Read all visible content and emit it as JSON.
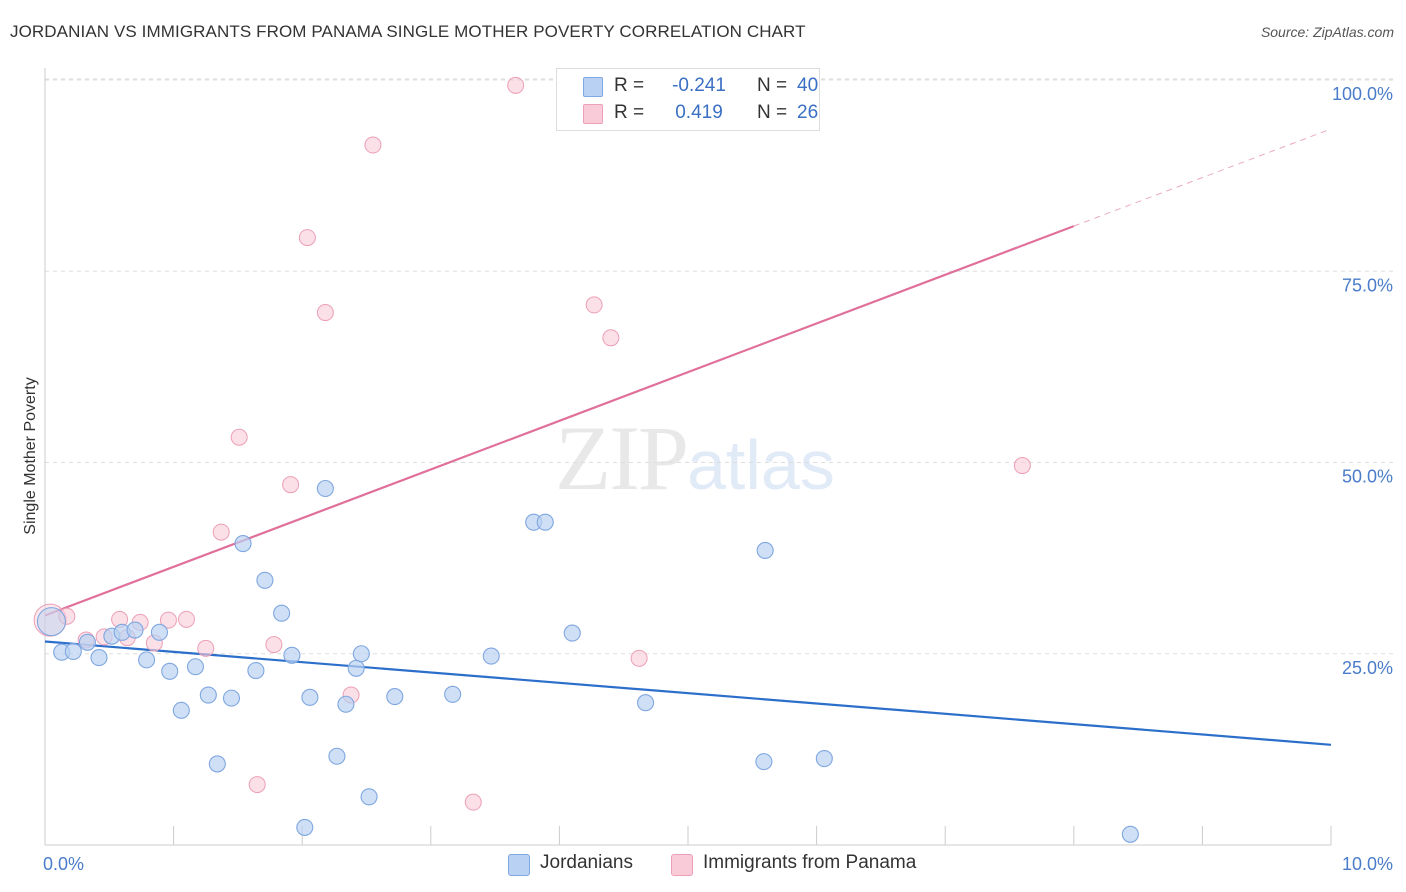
{
  "title": "JORDANIAN VS IMMIGRANTS FROM PANAMA SINGLE MOTHER POVERTY CORRELATION CHART",
  "source": "Source: ZipAtlas.com",
  "watermark": {
    "zip": "ZIP",
    "atlas": "atlas"
  },
  "legend": {
    "jordanians": {
      "r_label": "R =",
      "r_value": "-0.241",
      "n_label": "N =",
      "n_value": "40"
    },
    "panama": {
      "r_label": "R =",
      "r_value": "0.419",
      "n_label": "N =",
      "n_value": "26"
    }
  },
  "bottom_legend": {
    "jordanians": "Jordanians",
    "panama": "Immigrants from Panama"
  },
  "colors": {
    "blue_fill": "#b9d1f2",
    "blue_stroke": "#7fa7e0",
    "blue_line": "#2b6fcb",
    "pink_fill": "#f9cbd8",
    "pink_stroke": "#ec9fb6",
    "pink_line": "#e0709a",
    "grid": "#dddddd",
    "tick_text": "#4a7cc9"
  },
  "chart_data": {
    "type": "scatter",
    "title": "JORDANIAN VS IMMIGRANTS FROM PANAMA SINGLE MOTHER POVERTY CORRELATION CHART",
    "xlabel": "",
    "ylabel": "Single Mother Poverty",
    "xlim": [
      0,
      10
    ],
    "ylim": [
      0,
      102
    ],
    "x_ticks": [
      {
        "value": 0,
        "label": "0.0%"
      },
      {
        "value": 10,
        "label": "10.0%"
      }
    ],
    "y_ticks": [
      {
        "value": 25,
        "label": "25.0%"
      },
      {
        "value": 50,
        "label": "50.0%"
      },
      {
        "value": 75,
        "label": "75.0%"
      },
      {
        "value": 100,
        "label": "100.0%"
      }
    ],
    "series": [
      {
        "name": "Jordanians",
        "points": [
          {
            "x": 0.05,
            "y": 29.2,
            "big": true
          },
          {
            "x": 0.13,
            "y": 25.2
          },
          {
            "x": 0.22,
            "y": 25.3
          },
          {
            "x": 0.33,
            "y": 26.5
          },
          {
            "x": 0.42,
            "y": 24.5
          },
          {
            "x": 0.52,
            "y": 27.3
          },
          {
            "x": 0.6,
            "y": 27.8
          },
          {
            "x": 0.7,
            "y": 28.1
          },
          {
            "x": 0.79,
            "y": 24.2
          },
          {
            "x": 0.89,
            "y": 27.8
          },
          {
            "x": 0.97,
            "y": 22.7
          },
          {
            "x": 1.06,
            "y": 17.6
          },
          {
            "x": 1.17,
            "y": 23.3
          },
          {
            "x": 1.27,
            "y": 19.6
          },
          {
            "x": 1.34,
            "y": 10.6
          },
          {
            "x": 1.45,
            "y": 19.2
          },
          {
            "x": 1.54,
            "y": 39.4
          },
          {
            "x": 1.64,
            "y": 22.8
          },
          {
            "x": 1.71,
            "y": 34.6
          },
          {
            "x": 1.84,
            "y": 30.3
          },
          {
            "x": 1.92,
            "y": 24.8
          },
          {
            "x": 2.02,
            "y": 2.3
          },
          {
            "x": 2.06,
            "y": 19.3
          },
          {
            "x": 2.18,
            "y": 46.6
          },
          {
            "x": 2.27,
            "y": 11.6
          },
          {
            "x": 2.34,
            "y": 18.4
          },
          {
            "x": 2.42,
            "y": 23.1
          },
          {
            "x": 2.46,
            "y": 25.0
          },
          {
            "x": 2.52,
            "y": 6.3
          },
          {
            "x": 2.72,
            "y": 19.4
          },
          {
            "x": 3.17,
            "y": 19.7
          },
          {
            "x": 3.47,
            "y": 24.7
          },
          {
            "x": 3.8,
            "y": 42.2
          },
          {
            "x": 3.89,
            "y": 42.2
          },
          {
            "x": 4.1,
            "y": 27.7
          },
          {
            "x": 4.67,
            "y": 18.6
          },
          {
            "x": 5.6,
            "y": 38.5
          },
          {
            "x": 5.59,
            "y": 10.9
          },
          {
            "x": 6.06,
            "y": 11.3
          },
          {
            "x": 8.44,
            "y": 1.4
          }
        ]
      },
      {
        "name": "Immigrants from Panama",
        "points": [
          {
            "x": 0.04,
            "y": 29.4,
            "big": true
          },
          {
            "x": 0.17,
            "y": 29.9
          },
          {
            "x": 0.32,
            "y": 26.8
          },
          {
            "x": 0.46,
            "y": 27.2
          },
          {
            "x": 0.58,
            "y": 29.5
          },
          {
            "x": 0.64,
            "y": 27.1
          },
          {
            "x": 0.74,
            "y": 29.1
          },
          {
            "x": 0.85,
            "y": 26.4
          },
          {
            "x": 0.96,
            "y": 29.4
          },
          {
            "x": 1.1,
            "y": 29.5
          },
          {
            "x": 1.25,
            "y": 25.7
          },
          {
            "x": 1.37,
            "y": 40.9
          },
          {
            "x": 1.51,
            "y": 53.3
          },
          {
            "x": 1.65,
            "y": 7.9
          },
          {
            "x": 1.78,
            "y": 26.2
          },
          {
            "x": 1.91,
            "y": 47.1
          },
          {
            "x": 2.04,
            "y": 79.4
          },
          {
            "x": 2.18,
            "y": 69.6
          },
          {
            "x": 2.38,
            "y": 19.6
          },
          {
            "x": 2.55,
            "y": 91.5
          },
          {
            "x": 3.33,
            "y": 5.6
          },
          {
            "x": 3.66,
            "y": 99.3
          },
          {
            "x": 4.27,
            "y": 70.6
          },
          {
            "x": 4.4,
            "y": 66.3
          },
          {
            "x": 4.62,
            "y": 24.4
          },
          {
            "x": 7.6,
            "y": 49.6
          }
        ]
      }
    ],
    "trend_lines": [
      {
        "name": "Jordanians",
        "x0": 0,
        "y0": 26.6,
        "x1": 10,
        "y1": 13.1
      },
      {
        "name": "Immigrants from Panama",
        "x0": 0,
        "y0": 30.0,
        "x1": 8.0,
        "y1": 80.9,
        "dash_to_x": 10,
        "dash_to_y": 93.6
      }
    ]
  }
}
